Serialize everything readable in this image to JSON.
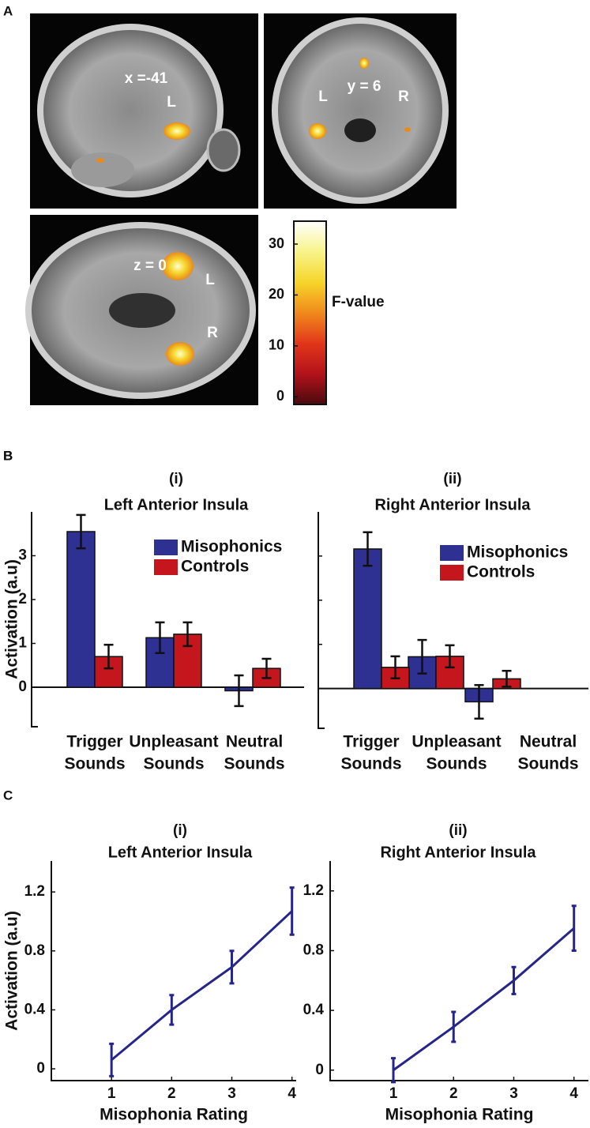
{
  "chart_data": [
    {
      "type": "colorbar",
      "panel": "A",
      "label": "F-value",
      "ylim": [
        -1.5,
        34.5
      ],
      "yticks": [
        0,
        10,
        20,
        30
      ],
      "colors": [
        "#4a0a0e",
        "#b3121b",
        "#e2361a",
        "#f08a1c",
        "#f6d52a",
        "#f8f48a",
        "#ffffff"
      ],
      "annotations": [
        "x =-41",
        "L",
        "L",
        "y = 6",
        "R",
        "z = 0",
        "L",
        "R"
      ]
    },
    {
      "type": "bar",
      "panel": "B",
      "subtitle": "(i)",
      "title": "Left Anterior Insula",
      "ylabel": "Activation (a.u)",
      "categories": [
        [
          "Trigger",
          "Sounds"
        ],
        [
          "Unpleasant",
          "Sounds"
        ],
        [
          "Neutral",
          "Sounds"
        ]
      ],
      "series": [
        {
          "name": "Misophonics",
          "color": "#2e3192",
          "values": [
            3.55,
            1.13,
            -0.08
          ],
          "errors": [
            0.38,
            0.35,
            0.35
          ]
        },
        {
          "name": "Controls",
          "color": "#c4161c",
          "values": [
            0.7,
            1.21,
            0.43
          ],
          "errors": [
            0.27,
            0.27,
            0.22
          ]
        }
      ],
      "ylim": [
        -0.9,
        4
      ],
      "yticks": [
        0,
        1,
        2,
        3
      ],
      "tick_labels": true
    },
    {
      "type": "bar",
      "panel": "B",
      "subtitle": "(ii)",
      "title": "Right Anterior Insula",
      "categories": [
        [
          "Trigger",
          "Sounds"
        ],
        [
          "Unpleasant",
          "Sounds"
        ],
        [
          "Neutral",
          "Sounds"
        ]
      ],
      "series": [
        {
          "name": "Misophonics",
          "color": "#2e3192",
          "values": [
            3.16,
            0.72,
            -0.3
          ],
          "errors": [
            0.38,
            0.38,
            0.38
          ]
        },
        {
          "name": "Controls",
          "color": "#c4161c",
          "values": [
            0.48,
            0.73,
            0.22
          ],
          "errors": [
            0.25,
            0.25,
            0.18
          ]
        }
      ],
      "ylim": [
        -0.9,
        4
      ],
      "yticks": [
        0,
        1,
        2,
        3
      ],
      "tick_labels": false
    },
    {
      "type": "line",
      "panel": "C",
      "subtitle": "(i)",
      "title": "Left Anterior Insula",
      "ylabel": "Activation (a.u)",
      "xlabel": "Misophonia Rating",
      "x": [
        1,
        2,
        3,
        4
      ],
      "values": [
        0.06,
        0.4,
        0.69,
        1.07
      ],
      "errors": [
        0.11,
        0.1,
        0.11,
        0.16
      ],
      "color": "#26268a",
      "xlim": [
        0,
        4.07
      ],
      "xticks": [
        1,
        2,
        3,
        4
      ],
      "ylim": [
        -0.08,
        1.41
      ],
      "yticks": [
        0,
        0.4,
        0.8,
        1.2
      ]
    },
    {
      "type": "line",
      "subtitle": "(ii)",
      "title": "Right Anterior Insula",
      "xlabel": "Misophonia Rating",
      "x": [
        1,
        2,
        3,
        4
      ],
      "values": [
        0,
        0.29,
        0.6,
        0.95
      ],
      "errors": [
        0.08,
        0.1,
        0.09,
        0.15
      ],
      "color": "#26268a",
      "xlim": [
        -0.05,
        4.24
      ],
      "xticks": [
        1,
        2,
        3,
        4
      ],
      "ylim": [
        -0.07,
        1.4
      ],
      "yticks": [
        0,
        0.4,
        0.8,
        1.2
      ]
    }
  ]
}
